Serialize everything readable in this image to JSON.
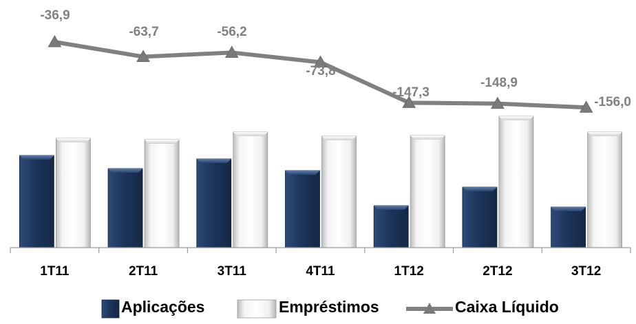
{
  "chart_data": {
    "type": "bar",
    "categories": [
      "1T11",
      "2T11",
      "3T11",
      "4T11",
      "1T12",
      "2T12",
      "3T12"
    ],
    "series": [
      {
        "name": "Aplicações",
        "kind": "bar",
        "color": "#1f3a63",
        "values": [
          134,
          115,
          129,
          112,
          61,
          88,
          59
        ]
      },
      {
        "name": "Empréstimos",
        "kind": "bar",
        "color": "#e6e6e6",
        "values": [
          159,
          157,
          168,
          162,
          163,
          191,
          168
        ]
      },
      {
        "name": "Caixa Líquido",
        "kind": "line",
        "marker": "triangle",
        "color": "#808080",
        "values": [
          -36.9,
          -63.7,
          -56.2,
          -73.8,
          -147.3,
          -148.9,
          -156.0
        ],
        "labels": [
          "-36,9",
          "-63,7",
          "-56,2",
          "-73,8",
          "-147,3",
          "-148,9",
          "-156,0"
        ]
      }
    ],
    "title": "",
    "xlabel": "",
    "ylabel": "",
    "legend_position": "bottom",
    "grid": false
  }
}
